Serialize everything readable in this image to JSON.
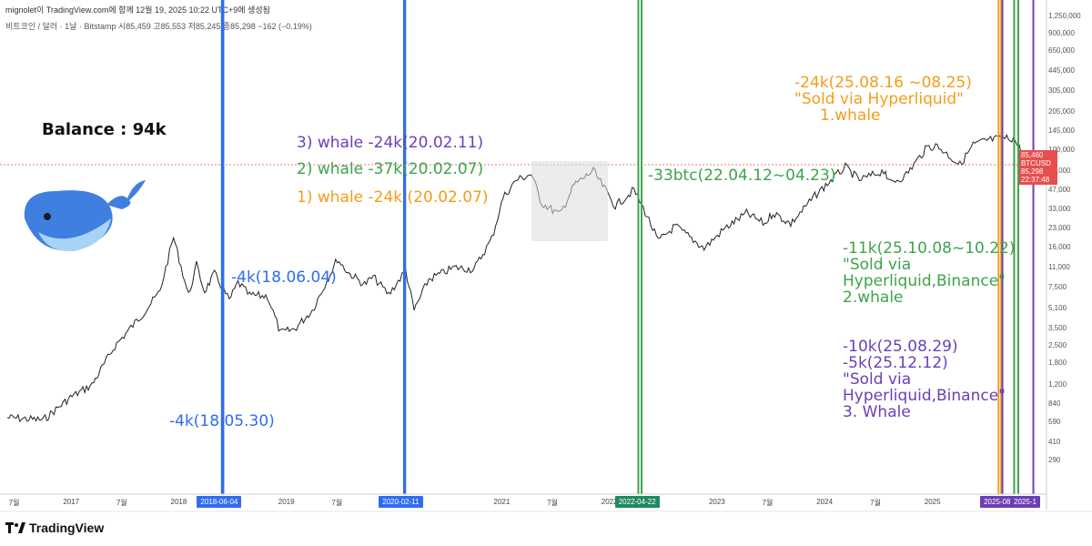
{
  "header": {
    "line1": "mignolet이 TradingView.com에 함께 12월 19, 2025 10:22 UTC+9에 생성됨",
    "line2": "비트코인 / 달러 · 1날 · Bitstamp  시85,459  고85,553  저85,245  종85,298  −162 (−0.19%)"
  },
  "chart_data": {
    "type": "line",
    "symbol": "BTCUSD",
    "yscale": "log",
    "ylim": [
      220,
      1250000
    ],
    "y_ticks": [
      "1,250,000",
      "900,000",
      "650,000",
      "445,000",
      "305,000",
      "205,000",
      "145,000",
      "100,000",
      "68,000",
      "47,000",
      "33,000",
      "23,000",
      "16,000",
      "11,000",
      "7,500",
      "5,100",
      "3,500",
      "2,500",
      "1,800",
      "1,200",
      "840",
      "590",
      "410",
      "290"
    ],
    "x_ticks": [
      "7월",
      "2017",
      "7월",
      "2018",
      "2019",
      "7월",
      "2021",
      "7월",
      "2022",
      "2023",
      "7월",
      "2024",
      "7월",
      "2025"
    ],
    "x_range": [
      "2016-06",
      "2026-01"
    ],
    "price_series": [
      [
        "2016-06-01",
        650
      ],
      [
        "2016-10-01",
        620
      ],
      [
        "2017-01-01",
        950
      ],
      [
        "2017-03-15",
        1200
      ],
      [
        "2017-06-01",
        2500
      ],
      [
        "2017-09-01",
        4500
      ],
      [
        "2017-11-01",
        7000
      ],
      [
        "2017-12-17",
        19500
      ],
      [
        "2018-02-06",
        6500
      ],
      [
        "2018-03-05",
        11500
      ],
      [
        "2018-04-01",
        7000
      ],
      [
        "2018-05-05",
        9800
      ],
      [
        "2018-06-24",
        5900
      ],
      [
        "2018-07-24",
        8300
      ],
      [
        "2018-09-01",
        6500
      ],
      [
        "2018-11-01",
        6400
      ],
      [
        "2018-12-15",
        3200
      ],
      [
        "2019-02-01",
        3450
      ],
      [
        "2019-04-02",
        4900
      ],
      [
        "2019-06-26",
        12900
      ],
      [
        "2019-08-01",
        10000
      ],
      [
        "2019-09-26",
        8000
      ],
      [
        "2019-10-26",
        9200
      ],
      [
        "2019-12-17",
        6600
      ],
      [
        "2020-02-13",
        10400
      ],
      [
        "2020-03-12",
        4900
      ],
      [
        "2020-05-01",
        8800
      ],
      [
        "2020-07-27",
        11000
      ],
      [
        "2020-10-01",
        10600
      ],
      [
        "2020-12-01",
        19000
      ],
      [
        "2021-01-08",
        41000
      ],
      [
        "2021-02-21",
        57000
      ],
      [
        "2021-04-14",
        64000
      ],
      [
        "2021-05-19",
        37000
      ],
      [
        "2021-07-20",
        29800
      ],
      [
        "2021-09-06",
        52000
      ],
      [
        "2021-11-10",
        68000
      ],
      [
        "2022-01-24",
        35000
      ],
      [
        "2022-03-28",
        47500
      ],
      [
        "2022-05-12",
        29000
      ],
      [
        "2022-06-18",
        18000
      ],
      [
        "2022-08-15",
        24000
      ],
      [
        "2022-11-21",
        15800
      ],
      [
        "2023-01-31",
        23000
      ],
      [
        "2023-04-14",
        30500
      ],
      [
        "2023-06-15",
        25000
      ],
      [
        "2023-07-13",
        31000
      ],
      [
        "2023-09-11",
        25000
      ],
      [
        "2023-12-08",
        44000
      ],
      [
        "2024-03-14",
        73000
      ],
      [
        "2024-05-01",
        57000
      ],
      [
        "2024-07-29",
        69000
      ],
      [
        "2024-08-05",
        54000
      ],
      [
        "2024-10-01",
        61000
      ],
      [
        "2024-12-17",
        106000
      ],
      [
        "2025-01-20",
        109000
      ],
      [
        "2025-04-07",
        76000
      ],
      [
        "2025-05-22",
        111000
      ],
      [
        "2025-07-14",
        122000
      ],
      [
        "2025-08-14",
        124000
      ],
      [
        "2025-10-06",
        126000
      ],
      [
        "2025-11-21",
        82000
      ],
      [
        "2025-12-19",
        85298
      ]
    ],
    "vertical_lines": [
      {
        "date": "2018-05-30",
        "color": "#2f6cf0"
      },
      {
        "date": "2018-06-04",
        "color": "#2f6cf0"
      },
      {
        "date": "2020-02-07",
        "color": "#2f6cf0"
      },
      {
        "date": "2020-02-11",
        "color": "#2f6cf0"
      },
      {
        "date": "2022-04-12",
        "color": "#3ea34a"
      },
      {
        "date": "2022-04-23",
        "color": "#3ea34a"
      },
      {
        "date": "2025-08-16",
        "color": "#f59c1a"
      },
      {
        "date": "2025-08-25",
        "color": "#f59c1a"
      },
      {
        "date": "2025-08-29",
        "color": "#6a3fb5"
      },
      {
        "date": "2025-10-08",
        "color": "#3ea34a"
      },
      {
        "date": "2025-10-22",
        "color": "#3ea34a"
      },
      {
        "date": "2025-12-12",
        "color": "#6a3fb5"
      }
    ],
    "x_badges": [
      {
        "label": "2018-06-04",
        "date": "2018-06-04",
        "color": "#2f6cf0"
      },
      {
        "label": "2020-02-11",
        "date": "2020-02-11",
        "color": "#2f6cf0"
      },
      {
        "label": "2022-04-22",
        "date": "2022-04-22",
        "color": "#1f8a5f"
      },
      {
        "label": "2025-08",
        "date": "2025-08-20",
        "color": "#6a3fb5"
      },
      {
        "label": "2025-1",
        "date": "2025-12-12",
        "color": "#6a3fb5"
      }
    ],
    "last_price": {
      "label": "BTCUSD",
      "price": "85,298",
      "high": "85,460",
      "time": "22:37:48",
      "value": 85298
    }
  },
  "annotations": {
    "balance": "Balance : 94k",
    "blue_top": "-4k(18.06.04)",
    "blue_bottom": "-4k(18.05.30)",
    "w3": "3) whale -24k(20.02.11)",
    "w2": "2) whale -37k(20.02.07)",
    "w1": "1) whale -24k (20.02.07)",
    "green_2022": "-33btc(22.04.12~04.23)",
    "orange_1": "-24k(25.08.16 ~08.25)",
    "orange_2": "\"Sold via Hyperliquid\"",
    "orange_3": "1.whale",
    "green_1": "-11k(25.10.08~10.22)",
    "green_2": "\"Sold via",
    "green_3": "Hyperliquid,Binance\"",
    "green_4": "2.whale",
    "purple_1": "-10k(25.08.29)",
    "purple_2": "-5k(25.12.12)",
    "purple_3": "\"Sold via",
    "purple_4": "Hyperliquid,Binance\"",
    "purple_5": "3. Whale"
  },
  "footer": {
    "brand": "TradingView"
  },
  "colors": {
    "blue": "#2f6cf0",
    "green": "#3ea34a",
    "orange": "#f59c1a",
    "purple": "#6a3fb5",
    "price_line": "#e84e4e"
  }
}
